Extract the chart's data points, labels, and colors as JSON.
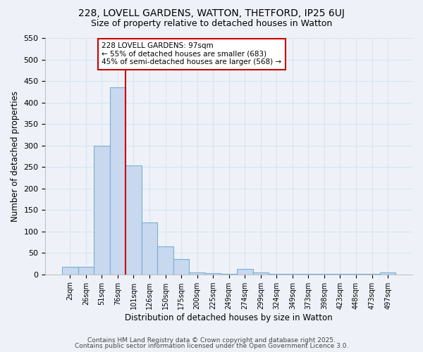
{
  "title1": "228, LOVELL GARDENS, WATTON, THETFORD, IP25 6UJ",
  "title2": "Size of property relative to detached houses in Watton",
  "xlabel": "Distribution of detached houses by size in Watton",
  "ylabel": "Number of detached properties",
  "bins": [
    "2sqm",
    "26sqm",
    "51sqm",
    "76sqm",
    "101sqm",
    "126sqm",
    "150sqm",
    "175sqm",
    "200sqm",
    "225sqm",
    "249sqm",
    "274sqm",
    "299sqm",
    "324sqm",
    "349sqm",
    "373sqm",
    "398sqm",
    "423sqm",
    "448sqm",
    "473sqm",
    "497sqm"
  ],
  "values": [
    18,
    18,
    300,
    435,
    253,
    120,
    65,
    35,
    5,
    3,
    1,
    12,
    5,
    1,
    1,
    1,
    1,
    1,
    1,
    1,
    5
  ],
  "bar_color": "#c8d8ee",
  "bar_edge_color": "#7aafd4",
  "bar_width": 1.0,
  "vline_color": "#cc0000",
  "vline_x_index": 4,
  "annotation_text": "228 LOVELL GARDENS: 97sqm\n← 55% of detached houses are smaller (683)\n45% of semi-detached houses are larger (568) →",
  "annotation_box_color": "#ffffff",
  "annotation_box_edge": "#cc0000",
  "footnote1": "Contains HM Land Registry data © Crown copyright and database right 2025.",
  "footnote2": "Contains public sector information licensed under the Open Government Licence 3.0.",
  "bg_color": "#eef2f8",
  "grid_color": "#d8e4f0",
  "ylim": [
    0,
    550
  ],
  "yticks": [
    0,
    50,
    100,
    150,
    200,
    250,
    300,
    350,
    400,
    450,
    500,
    550
  ]
}
